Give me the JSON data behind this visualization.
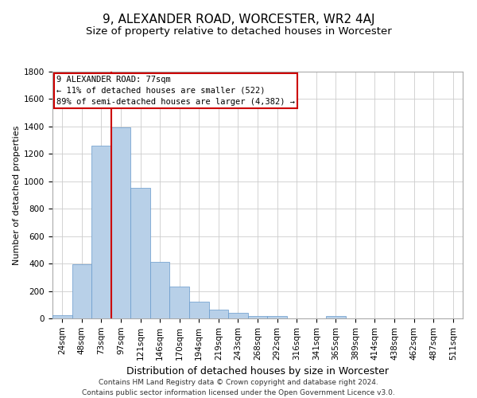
{
  "title": "9, ALEXANDER ROAD, WORCESTER, WR2 4AJ",
  "subtitle": "Size of property relative to detached houses in Worcester",
  "xlabel": "Distribution of detached houses by size in Worcester",
  "ylabel": "Number of detached properties",
  "footer_line1": "Contains HM Land Registry data © Crown copyright and database right 2024.",
  "footer_line2": "Contains public sector information licensed under the Open Government Licence v3.0.",
  "categories": [
    "24sqm",
    "48sqm",
    "73sqm",
    "97sqm",
    "121sqm",
    "146sqm",
    "170sqm",
    "194sqm",
    "219sqm",
    "243sqm",
    "268sqm",
    "292sqm",
    "316sqm",
    "341sqm",
    "365sqm",
    "389sqm",
    "414sqm",
    "438sqm",
    "462sqm",
    "487sqm",
    "511sqm"
  ],
  "values": [
    25,
    395,
    1260,
    1395,
    950,
    415,
    235,
    120,
    65,
    40,
    20,
    15,
    0,
    0,
    15,
    0,
    0,
    0,
    0,
    0,
    0
  ],
  "bar_color": "#b8d0e8",
  "bar_edge_color": "#6699cc",
  "grid_color": "#cccccc",
  "subject_bar_index": 2,
  "subject_label": "9 ALEXANDER ROAD: 77sqm",
  "annotation_line1": "← 11% of detached houses are smaller (522)",
  "annotation_line2": "89% of semi-detached houses are larger (4,382) →",
  "annotation_box_color": "#cc0000",
  "ylim": [
    0,
    1800
  ],
  "yticks": [
    0,
    200,
    400,
    600,
    800,
    1000,
    1200,
    1400,
    1600,
    1800
  ],
  "title_fontsize": 11,
  "subtitle_fontsize": 9.5,
  "xlabel_fontsize": 9,
  "ylabel_fontsize": 8,
  "tick_fontsize": 7.5,
  "annotation_fontsize": 7.5,
  "footer_fontsize": 6.5
}
